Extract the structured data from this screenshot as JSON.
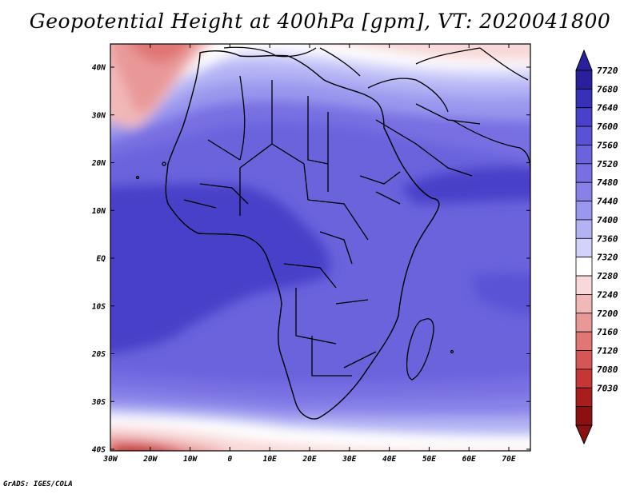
{
  "title": "Geopotential Height at 400hPa [gpm], VT: 2020041800",
  "credit": "GrADS: IGES/COLA",
  "map": {
    "lat_labels": [
      "40N",
      "30N",
      "20N",
      "10N",
      "EQ",
      "10S",
      "20S",
      "30S",
      "40S"
    ],
    "lon_labels": [
      "30W",
      "20W",
      "10W",
      "0",
      "10E",
      "20E",
      "30E",
      "40E",
      "50E",
      "60E",
      "70E"
    ]
  },
  "colorbar": {
    "levels": [
      "7720",
      "7680",
      "7640",
      "7600",
      "7560",
      "7520",
      "7480",
      "7440",
      "7400",
      "7360",
      "7320",
      "7280",
      "7240",
      "7200",
      "7160",
      "7120",
      "7080",
      "7030"
    ],
    "colors": [
      "#2a209e",
      "#3631b6",
      "#4841c9",
      "#5a52d6",
      "#6a63dc",
      "#7870e2",
      "#8882e8",
      "#9a97ee",
      "#b3b2f4",
      "#d2d2fa",
      "#ffffff",
      "#f8d8d8",
      "#f1b8b8",
      "#e99898",
      "#e07676",
      "#d65656",
      "#c63636",
      "#a81e1e",
      "#8c1010"
    ]
  }
}
